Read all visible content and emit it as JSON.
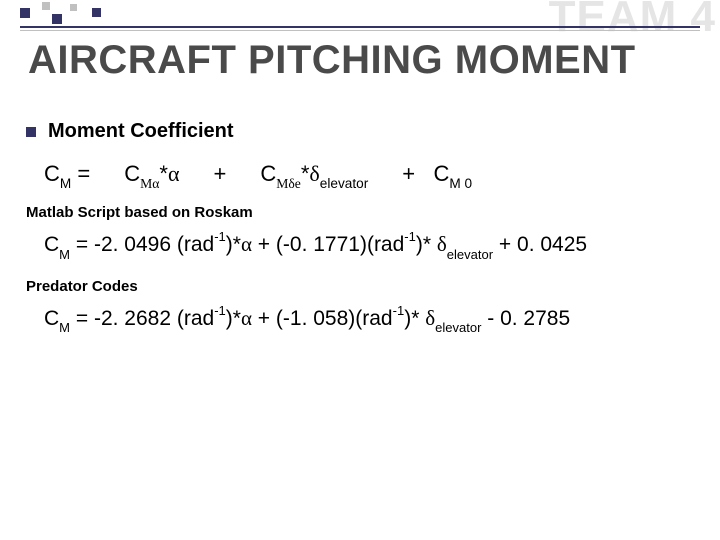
{
  "watermark": "TEAM 4",
  "slide_title": "AIRCRAFT PITCHING MOMENT",
  "bullet": {
    "text": "Moment Coefficient"
  },
  "generic_formula": {
    "lhs": "C",
    "lhs_sub": "M",
    "eq": "=",
    "term1_base": "C",
    "term1_sub": "Mα",
    "term1_star": "*",
    "term1_var": "α",
    "plus1": "+",
    "term2_base": "C",
    "term2_sub": "Mδe",
    "term2_star": "*",
    "term2_var_pre": "δ",
    "term2_var_sub": "elevator",
    "plus2": "+",
    "term3_base": "C",
    "term3_sub": "M 0"
  },
  "section1": {
    "label": "Matlab Script based on Roskam",
    "eq_lhs": "C",
    "eq_lhs_sub": "M",
    "eq_eq": " = ",
    "v1": "-2. 0496 (rad",
    "v1_sup": "-1",
    "v1_post": ")*",
    "v1_var": "α",
    "mid": " + (-0. 1771)(rad",
    "mid_sup": "-1",
    "mid_post": ")* ",
    "mid_var_pre": "δ",
    "mid_var_sub": "elevator",
    "tail": " + 0. 0425"
  },
  "section2": {
    "label": "Predator Codes",
    "eq_lhs": "C",
    "eq_lhs_sub": "M",
    "eq_eq": " = ",
    "v1": "-2. 2682 (rad",
    "v1_sup": "-1",
    "v1_post": ")*",
    "v1_var": "α",
    "mid": " + (-1. 058)(rad",
    "mid_sup": "-1",
    "mid_post": ")* ",
    "mid_var_pre": "δ",
    "mid_var_sub": "elevator",
    "tail": " - 0. 2785"
  },
  "colors": {
    "accent": "#333366",
    "title_color": "#4a4a4a",
    "watermark_color": "#e5e5e5",
    "bg": "#ffffff"
  }
}
